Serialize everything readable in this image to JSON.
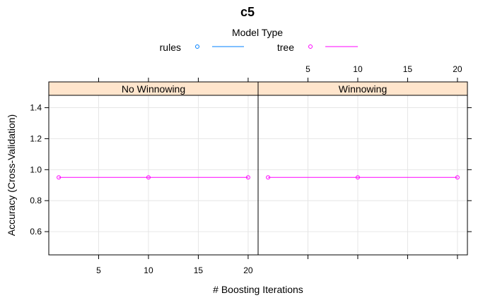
{
  "chart_data": {
    "type": "line",
    "title": "c5",
    "xlabel": "# Boosting Iterations",
    "ylabel": "Accuracy (Cross-Validation)",
    "legend": {
      "title": "Model Type",
      "position": "top",
      "entries": [
        {
          "name": "rules",
          "color": "#0080ff"
        },
        {
          "name": "tree",
          "color": "#ff00ff"
        }
      ]
    },
    "xlim": [
      0,
      21
    ],
    "ylim": [
      0.45,
      1.48
    ],
    "x_ticks": [
      5,
      10,
      15,
      20
    ],
    "y_ticks": [
      "0.6",
      "0.8",
      "1.0",
      "1.2",
      "1.4"
    ],
    "grid": true,
    "panels": [
      {
        "strip": "No Winnowing",
        "series": [
          {
            "name": "tree",
            "x": [
              1,
              10,
              20
            ],
            "values": [
              0.95,
              0.95,
              0.95
            ]
          }
        ]
      },
      {
        "strip": "Winnowing",
        "series": [
          {
            "name": "tree",
            "x": [
              1,
              10,
              20
            ],
            "values": [
              0.95,
              0.95,
              0.95
            ]
          }
        ]
      }
    ]
  },
  "colors": {
    "strip_bg": "#ffe5cc",
    "grid": "#e6e6e6",
    "rules": "#0080ff",
    "tree": "#ff00ff"
  }
}
